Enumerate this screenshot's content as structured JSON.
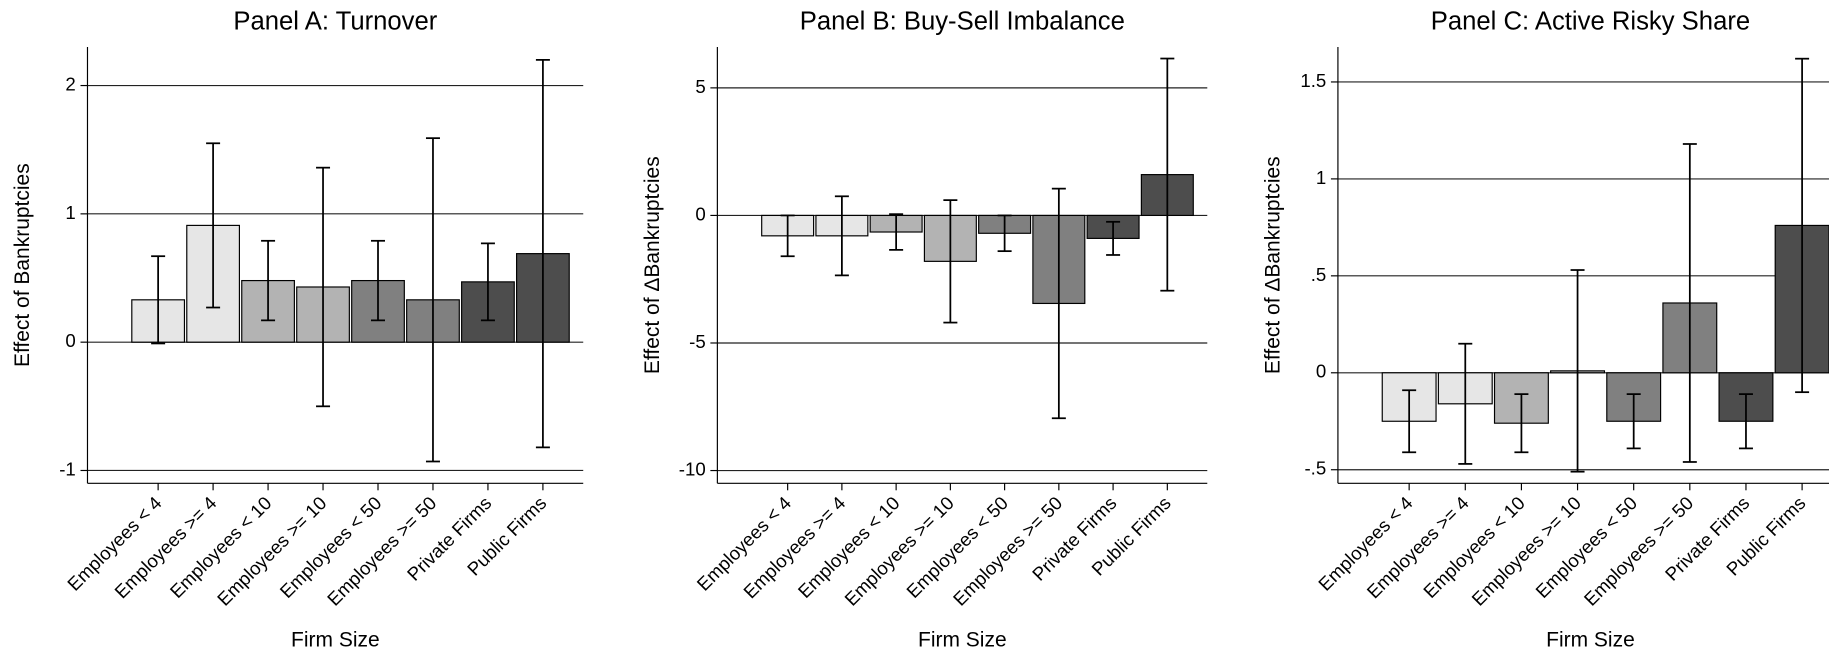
{
  "chart_data": [
    {
      "type": "bar",
      "title": "Panel A: Turnover",
      "xlabel": "Firm Size",
      "ylabel": "Effect of Bankruptcies",
      "categories": [
        "Employees < 4",
        "Employees >= 4",
        "Employees < 10",
        "Employees >= 10",
        "Employees < 50",
        "Employees >= 50",
        "Private Firms",
        "Public Firms"
      ],
      "values": [
        0.33,
        0.91,
        0.48,
        0.43,
        0.48,
        0.33,
        0.47,
        0.69
      ],
      "errors": [
        0.34,
        0.64,
        0.31,
        0.93,
        0.31,
        1.26,
        0.3,
        1.51
      ],
      "colors": [
        "#e6e6e6",
        "#e6e6e6",
        "#b3b3b3",
        "#b3b3b3",
        "#808080",
        "#808080",
        "#4d4d4d",
        "#4d4d4d"
      ],
      "ylim": [
        -1.1,
        2.3
      ],
      "yticks": [
        -1,
        0,
        1,
        2
      ],
      "grid": true
    },
    {
      "type": "bar",
      "title": "Panel B: Buy-Sell Imbalance",
      "xlabel": "Firm Size",
      "ylabel": "Effect of ΔBankruptcies",
      "categories": [
        "Employees < 4",
        "Employees >= 4",
        "Employees < 10",
        "Employees >= 10",
        "Employees < 50",
        "Employees >= 50",
        "Private Firms",
        "Public Firms"
      ],
      "values": [
        -0.8,
        -0.8,
        -0.65,
        -1.8,
        -0.7,
        -3.45,
        -0.9,
        1.6
      ],
      "errors": [
        0.8,
        1.55,
        0.7,
        2.4,
        0.7,
        4.5,
        0.65,
        4.55
      ],
      "colors": [
        "#e6e6e6",
        "#e6e6e6",
        "#b3b3b3",
        "#b3b3b3",
        "#808080",
        "#808080",
        "#4d4d4d",
        "#4d4d4d"
      ],
      "ylim": [
        -10.5,
        6.6
      ],
      "yticks": [
        -10,
        -5,
        0,
        5
      ],
      "grid": true
    },
    {
      "type": "bar",
      "title": "Panel C: Active Risky Share",
      "xlabel": "Firm Size",
      "ylabel": "Effect of ΔBankruptcies",
      "categories": [
        "Employees < 4",
        "Employees >= 4",
        "Employees < 10",
        "Employees >= 10",
        "Employees < 50",
        "Employees >= 50",
        "Private Firms",
        "Public Firms"
      ],
      "values": [
        -0.25,
        -0.16,
        -0.26,
        0.01,
        -0.25,
        0.36,
        -0.25,
        0.76
      ],
      "errors": [
        0.16,
        0.31,
        0.15,
        0.52,
        0.14,
        0.82,
        0.14,
        0.86
      ],
      "colors": [
        "#e6e6e6",
        "#e6e6e6",
        "#b3b3b3",
        "#b3b3b3",
        "#808080",
        "#808080",
        "#4d4d4d",
        "#4d4d4d"
      ],
      "ylim": [
        -0.57,
        1.68
      ],
      "yticks": [
        {
          "value": -0.5,
          "label": "-.5"
        },
        0,
        {
          "value": 0.5,
          "label": ".5"
        },
        1,
        1.5
      ],
      "grid": true
    }
  ]
}
